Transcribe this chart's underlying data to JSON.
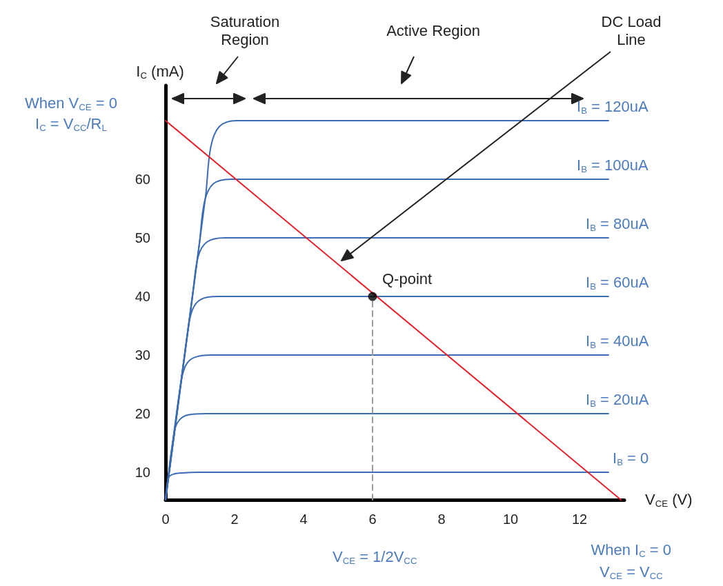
{
  "chart_data": {
    "type": "line",
    "xlabel": "V$_{CE}$ (V)",
    "ylabel": "I$_{C}$ (mA)",
    "xlim": [
      0,
      13.3
    ],
    "ylim": [
      5.3,
      76
    ],
    "xticks": [
      0,
      2,
      4,
      6,
      8,
      10,
      12
    ],
    "yticks": [
      10,
      20,
      30,
      40,
      50,
      60
    ],
    "grid": false,
    "marker": "none",
    "line_style": "solid",
    "series": [
      {
        "name": "I$_{B}$ = 120uA",
        "color": "#3b6cb3",
        "x": [
          0,
          1.16,
          1.31,
          1.56,
          2.06,
          12.84
        ],
        "values": [
          5.3,
          57.1,
          65.5,
          69,
          70,
          70
        ]
      },
      {
        "name": "I$_{B}$ = 100uA",
        "color": "#3b6cb3",
        "x": [
          0,
          0.98,
          1.13,
          1.38,
          1.88,
          12.84
        ],
        "values": [
          5.3,
          49.1,
          56.2,
          59.2,
          60,
          60
        ]
      },
      {
        "name": "I$_{B}$ = 80uA",
        "color": "#3b6cb3",
        "x": [
          0,
          0.8,
          0.95,
          1.2,
          1.7,
          12.84
        ],
        "values": [
          5.3,
          41.1,
          46.9,
          49.3,
          50,
          50
        ]
      },
      {
        "name": "I$_{B}$ = 60uA",
        "color": "#3b6cb3",
        "x": [
          0,
          0.62,
          0.77,
          1.02,
          1.52,
          12.84
        ],
        "values": [
          5.3,
          33.1,
          37.6,
          39.5,
          40,
          40
        ]
      },
      {
        "name": "I$_{B}$ = 40uA",
        "color": "#3b6cb3",
        "x": [
          0,
          0.44,
          0.59,
          0.84,
          1.34,
          12.84
        ],
        "values": [
          5.3,
          25.1,
          28.3,
          29.6,
          30,
          30
        ]
      },
      {
        "name": "I$_{B}$ = 20uA",
        "color": "#3b6cb3",
        "x": [
          0,
          0.26,
          0.41,
          0.66,
          1.16,
          12.84
        ],
        "values": [
          5.3,
          17.1,
          19,
          19.8,
          20,
          20
        ]
      },
      {
        "name": "I$_{B}$ = 0",
        "color": "#3b6cb3",
        "x": [
          0,
          0.085,
          0.235,
          0.485,
          0.985,
          12.84
        ],
        "values": [
          5.3,
          9.1,
          9.7,
          9.9,
          10,
          10
        ]
      },
      {
        "type": "line",
        "color": "#e8202a",
        "x": [
          0,
          13.2
        ],
        "values": [
          70,
          5.3
        ]
      },
      {
        "type": "line",
        "color": "#999999",
        "line_style": "dashed",
        "x": [
          6,
          6
        ],
        "values": [
          5.3,
          40
        ]
      },
      {
        "type": "scatter",
        "color": "#000000",
        "marker": "circle",
        "x": [
          6
        ],
        "values": [
          40
        ]
      }
    ],
    "annotations": [
      "When V$_{CE}$ = 0",
      "I$_{C}$ = V$_{CC}$/R$_{L}$",
      "Saturation Region",
      "Active Region",
      "DC Load Line",
      {
        "text": "Q-point",
        "x": 6,
        "y": 40
      },
      "V$_{CE}$ = 1/2V$_{CC}$",
      "When I$_{C}$ = 0",
      "V$_{CE}$ = V$_{CC}$"
    ]
  }
}
